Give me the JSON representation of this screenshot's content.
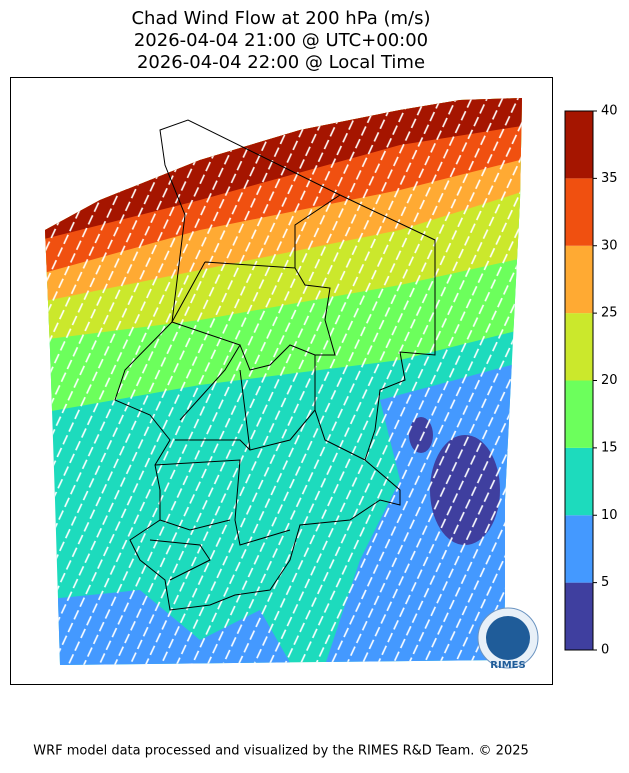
{
  "title": [
    "Chad Wind Flow at 200 hPa (m/s)",
    "2026-04-04 21:00 @ UTC+00:00",
    "2026-04-04 22:00 @ Local Time"
  ],
  "colorbar": {
    "ticks": [
      0,
      5,
      10,
      15,
      20,
      25,
      30,
      35,
      40
    ],
    "colors": [
      "#3f3f9f",
      "#4499ff",
      "#1ddbbd",
      "#6cff5c",
      "#cbe82c",
      "#ffaa33",
      "#f05010",
      "#a51500"
    ]
  },
  "logo": "RIMES",
  "footer": "WRF model data processed and visualized by the RIMES R&D Team. © 2025"
}
